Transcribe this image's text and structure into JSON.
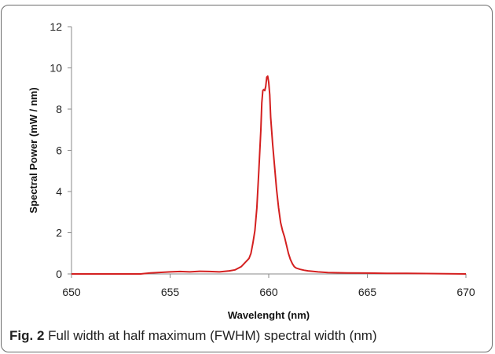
{
  "caption": {
    "label": "Fig. 2",
    "text": "Full width at half maximum (FWHM) spectral width (nm)"
  },
  "chart_data": {
    "type": "line",
    "title": "",
    "xlabel": "Wavelenght (nm)",
    "ylabel": "Spectral Power (mW / nm)",
    "xlim": [
      650,
      670
    ],
    "ylim": [
      0,
      12
    ],
    "x_ticks": [
      650,
      655,
      660,
      665,
      670
    ],
    "y_ticks": [
      0,
      2,
      4,
      6,
      8,
      10,
      12
    ],
    "grid": false,
    "legend": "none",
    "series": [
      {
        "color": "#d42020",
        "x": [
          650,
          653.5,
          654,
          655,
          655.5,
          656,
          656.5,
          657,
          657.5,
          658,
          658.3,
          658.6,
          658.8,
          659.0,
          659.1,
          659.2,
          659.3,
          659.4,
          659.5,
          659.6,
          659.65,
          659.7,
          659.75,
          659.8,
          659.85,
          659.9,
          659.95,
          660.0,
          660.05,
          660.1,
          660.2,
          660.3,
          660.4,
          660.5,
          660.6,
          660.7,
          660.8,
          660.9,
          661.0,
          661.1,
          661.2,
          661.3,
          661.4,
          661.6,
          661.8,
          662.0,
          662.5,
          663,
          664,
          665,
          666,
          667,
          668,
          670
        ],
        "y": [
          0,
          0,
          0.05,
          0.1,
          0.12,
          0.1,
          0.13,
          0.12,
          0.1,
          0.15,
          0.2,
          0.35,
          0.55,
          0.75,
          1.0,
          1.5,
          2.1,
          3.2,
          5.0,
          7.0,
          8.3,
          8.9,
          8.95,
          8.9,
          9.1,
          9.55,
          9.6,
          9.3,
          8.7,
          7.6,
          6.3,
          5.2,
          4.1,
          3.2,
          2.5,
          2.1,
          1.8,
          1.4,
          1.0,
          0.7,
          0.5,
          0.35,
          0.28,
          0.22,
          0.18,
          0.15,
          0.1,
          0.07,
          0.05,
          0.04,
          0.03,
          0.03,
          0.02,
          0
        ]
      }
    ]
  }
}
